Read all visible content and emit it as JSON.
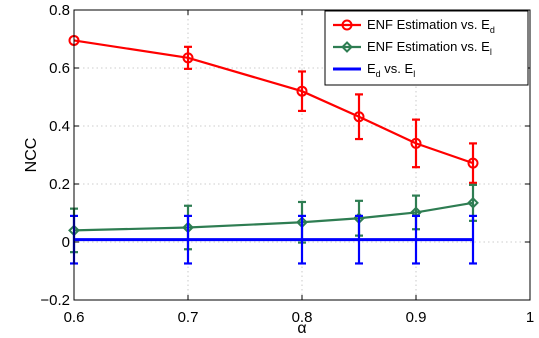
{
  "chart_data": {
    "type": "line",
    "title": "",
    "xlabel": "α",
    "ylabel": "NCC",
    "xlim": [
      0.6,
      1.0
    ],
    "ylim": [
      -0.2,
      0.8
    ],
    "xticks": [
      0.6,
      0.7,
      0.8,
      0.9,
      1.0
    ],
    "xtick_labels": [
      "0.6",
      "0.7",
      "0.8",
      "0.9",
      "1"
    ],
    "yticks": [
      -0.2,
      0,
      0.2,
      0.4,
      0.6,
      0.8
    ],
    "ytick_labels": [
      "−0.2",
      "0",
      "0.2",
      "0.4",
      "0.6",
      "0.8"
    ],
    "grid": true,
    "legend_position": "top-right",
    "series": [
      {
        "name": "ENF Estimation vs. Ed",
        "legend_main": "ENF Estimation vs. E",
        "legend_sub": "d",
        "color": "#ff0000",
        "marker": "circle",
        "x": [
          0.6,
          0.7,
          0.8,
          0.85,
          0.9,
          0.95
        ],
        "values": [
          0.695,
          0.635,
          0.52,
          0.432,
          0.34,
          0.272
        ],
        "err": [
          0.0,
          0.038,
          0.068,
          0.077,
          0.082,
          0.068
        ]
      },
      {
        "name": "ENF Estimation vs. El",
        "legend_main": "ENF Estimation vs. E",
        "legend_sub": "l",
        "color": "#2e7d52",
        "marker": "diamond",
        "x": [
          0.6,
          0.7,
          0.8,
          0.85,
          0.9,
          0.95
        ],
        "values": [
          0.04,
          0.05,
          0.068,
          0.082,
          0.102,
          0.135
        ],
        "err": [
          0.075,
          0.075,
          0.07,
          0.06,
          0.058,
          0.062
        ]
      },
      {
        "name": "Ed vs. El",
        "legend_parts": [
          "E",
          "d",
          " vs. E",
          "l"
        ],
        "color": "#0000ff",
        "marker": "none",
        "x": [
          0.6,
          0.7,
          0.8,
          0.85,
          0.9,
          0.95
        ],
        "values": [
          0.008,
          0.008,
          0.008,
          0.008,
          0.008,
          0.008
        ],
        "err": [
          0.082,
          0.082,
          0.082,
          0.082,
          0.082,
          0.082
        ]
      }
    ]
  }
}
